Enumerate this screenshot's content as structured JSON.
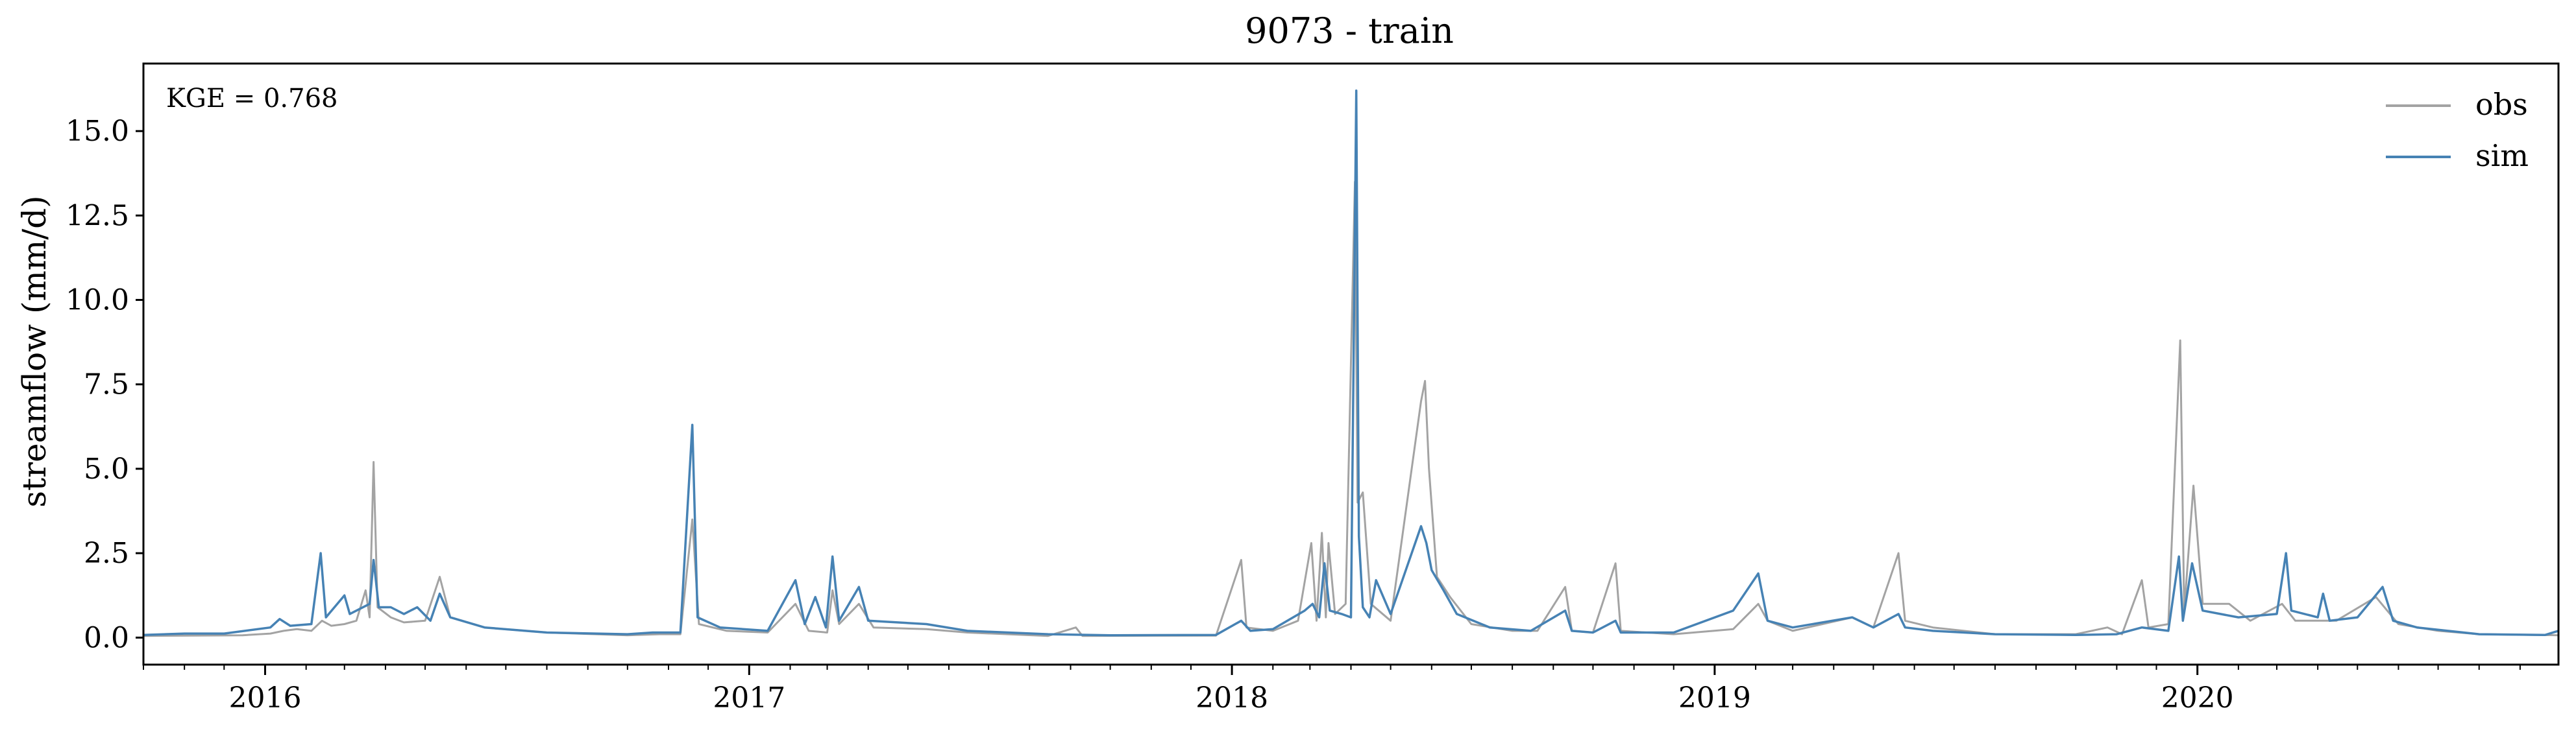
{
  "chart_data": {
    "type": "line",
    "title": "9073 - train",
    "xlabel": "",
    "ylabel": "streamflow (mm/d)",
    "annotation": "KGE = 0.768",
    "legend_position": "top-right",
    "grid": false,
    "xlim": [
      "2015-10-01",
      "2020-09-30"
    ],
    "ylim": [
      -0.8,
      17.0
    ],
    "x_ticks": [
      "2016",
      "2017",
      "2018",
      "2019",
      "2020"
    ],
    "x_tick_dates": [
      "2016-01-01",
      "2017-01-01",
      "2018-01-01",
      "2019-01-01",
      "2020-01-01"
    ],
    "y_ticks": [
      "0.0",
      "2.5",
      "5.0",
      "7.5",
      "10.0",
      "12.5",
      "15.0"
    ],
    "y_tick_values": [
      0,
      2.5,
      5,
      7.5,
      10,
      12.5,
      15
    ],
    "series": [
      {
        "name": "obs",
        "color": "#a3a3a3",
        "points": [
          [
            "2015-10-01",
            0.05
          ],
          [
            "2015-12-15",
            0.07
          ],
          [
            "2016-01-05",
            0.12
          ],
          [
            "2016-01-15",
            0.2
          ],
          [
            "2016-01-25",
            0.25
          ],
          [
            "2016-02-05",
            0.2
          ],
          [
            "2016-02-13",
            0.5
          ],
          [
            "2016-02-20",
            0.35
          ],
          [
            "2016-03-01",
            0.4
          ],
          [
            "2016-03-10",
            0.5
          ],
          [
            "2016-03-17",
            1.4
          ],
          [
            "2016-03-20",
            0.6
          ],
          [
            "2016-03-23",
            5.2
          ],
          [
            "2016-03-26",
            0.9
          ],
          [
            "2016-04-05",
            0.6
          ],
          [
            "2016-04-15",
            0.45
          ],
          [
            "2016-05-01",
            0.5
          ],
          [
            "2016-05-12",
            1.8
          ],
          [
            "2016-05-20",
            0.6
          ],
          [
            "2016-06-15",
            0.3
          ],
          [
            "2016-08-01",
            0.15
          ],
          [
            "2016-10-01",
            0.07
          ],
          [
            "2016-10-25",
            0.1
          ],
          [
            "2016-11-10",
            0.1
          ],
          [
            "2016-11-19",
            3.5
          ],
          [
            "2016-11-24",
            0.4
          ],
          [
            "2016-12-15",
            0.2
          ],
          [
            "2017-01-15",
            0.15
          ],
          [
            "2017-02-05",
            1.0
          ],
          [
            "2017-02-15",
            0.2
          ],
          [
            "2017-03-01",
            0.15
          ],
          [
            "2017-03-05",
            1.4
          ],
          [
            "2017-03-10",
            0.4
          ],
          [
            "2017-03-25",
            1.0
          ],
          [
            "2017-04-05",
            0.3
          ],
          [
            "2017-05-15",
            0.25
          ],
          [
            "2017-06-15",
            0.15
          ],
          [
            "2017-08-15",
            0.05
          ],
          [
            "2017-09-05",
            0.3
          ],
          [
            "2017-09-10",
            0.05
          ],
          [
            "2017-12-20",
            0.06
          ],
          [
            "2018-01-08",
            2.3
          ],
          [
            "2018-01-12",
            0.3
          ],
          [
            "2018-02-01",
            0.2
          ],
          [
            "2018-02-20",
            0.5
          ],
          [
            "2018-03-02",
            2.8
          ],
          [
            "2018-03-06",
            0.5
          ],
          [
            "2018-03-10",
            3.1
          ],
          [
            "2018-03-13",
            0.6
          ],
          [
            "2018-03-15",
            2.8
          ],
          [
            "2018-03-20",
            0.7
          ],
          [
            "2018-03-28",
            1.0
          ],
          [
            "2018-04-04",
            13.5
          ],
          [
            "2018-04-06",
            4.0
          ],
          [
            "2018-04-10",
            4.3
          ],
          [
            "2018-04-16",
            1.0
          ],
          [
            "2018-05-01",
            0.5
          ],
          [
            "2018-05-24",
            7.0
          ],
          [
            "2018-05-27",
            7.6
          ],
          [
            "2018-05-30",
            5.0
          ],
          [
            "2018-06-05",
            1.8
          ],
          [
            "2018-06-15",
            1.2
          ],
          [
            "2018-07-01",
            0.4
          ],
          [
            "2018-08-01",
            0.2
          ],
          [
            "2018-08-20",
            0.2
          ],
          [
            "2018-09-10",
            1.5
          ],
          [
            "2018-09-15",
            0.2
          ],
          [
            "2018-10-01",
            0.15
          ],
          [
            "2018-10-18",
            2.2
          ],
          [
            "2018-10-22",
            0.2
          ],
          [
            "2018-12-01",
            0.1
          ],
          [
            "2019-01-15",
            0.25
          ],
          [
            "2019-02-03",
            1.0
          ],
          [
            "2019-02-10",
            0.5
          ],
          [
            "2019-03-01",
            0.2
          ],
          [
            "2019-04-15",
            0.6
          ],
          [
            "2019-05-01",
            0.3
          ],
          [
            "2019-05-20",
            2.5
          ],
          [
            "2019-05-25",
            0.5
          ],
          [
            "2019-06-15",
            0.3
          ],
          [
            "2019-08-01",
            0.1
          ],
          [
            "2019-10-01",
            0.1
          ],
          [
            "2019-10-25",
            0.3
          ],
          [
            "2019-11-05",
            0.1
          ],
          [
            "2019-11-20",
            1.7
          ],
          [
            "2019-11-25",
            0.3
          ],
          [
            "2019-12-10",
            0.4
          ],
          [
            "2019-12-19",
            8.8
          ],
          [
            "2019-12-22",
            0.8
          ],
          [
            "2019-12-29",
            4.5
          ],
          [
            "2020-01-05",
            1.0
          ],
          [
            "2020-01-25",
            1.0
          ],
          [
            "2020-02-10",
            0.5
          ],
          [
            "2020-03-05",
            1.0
          ],
          [
            "2020-03-15",
            0.5
          ],
          [
            "2020-04-15",
            0.5
          ],
          [
            "2020-05-15",
            1.2
          ],
          [
            "2020-06-01",
            0.4
          ],
          [
            "2020-07-01",
            0.2
          ],
          [
            "2020-08-01",
            0.1
          ],
          [
            "2020-09-30",
            0.07
          ]
        ]
      },
      {
        "name": "sim",
        "color": "#4682b4",
        "points": [
          [
            "2015-10-01",
            0.08
          ],
          [
            "2015-11-01",
            0.12
          ],
          [
            "2015-12-01",
            0.12
          ],
          [
            "2016-01-05",
            0.3
          ],
          [
            "2016-01-12",
            0.55
          ],
          [
            "2016-01-20",
            0.35
          ],
          [
            "2016-02-05",
            0.4
          ],
          [
            "2016-02-12",
            2.5
          ],
          [
            "2016-02-16",
            0.6
          ],
          [
            "2016-03-01",
            1.25
          ],
          [
            "2016-03-05",
            0.7
          ],
          [
            "2016-03-20",
            1.0
          ],
          [
            "2016-03-23",
            2.3
          ],
          [
            "2016-03-27",
            0.9
          ],
          [
            "2016-04-05",
            0.9
          ],
          [
            "2016-04-15",
            0.7
          ],
          [
            "2016-04-25",
            0.9
          ],
          [
            "2016-05-05",
            0.5
          ],
          [
            "2016-05-12",
            1.3
          ],
          [
            "2016-05-20",
            0.6
          ],
          [
            "2016-06-15",
            0.3
          ],
          [
            "2016-08-01",
            0.15
          ],
          [
            "2016-10-01",
            0.1
          ],
          [
            "2016-10-20",
            0.15
          ],
          [
            "2016-11-10",
            0.15
          ],
          [
            "2016-11-19",
            6.3
          ],
          [
            "2016-11-23",
            0.6
          ],
          [
            "2016-12-10",
            0.3
          ],
          [
            "2017-01-15",
            0.2
          ],
          [
            "2017-02-05",
            1.7
          ],
          [
            "2017-02-12",
            0.4
          ],
          [
            "2017-02-20",
            1.2
          ],
          [
            "2017-02-28",
            0.3
          ],
          [
            "2017-03-05",
            2.4
          ],
          [
            "2017-03-10",
            0.5
          ],
          [
            "2017-03-25",
            1.5
          ],
          [
            "2017-04-01",
            0.5
          ],
          [
            "2017-05-15",
            0.4
          ],
          [
            "2017-06-15",
            0.2
          ],
          [
            "2017-08-15",
            0.1
          ],
          [
            "2017-10-01",
            0.07
          ],
          [
            "2017-12-20",
            0.08
          ],
          [
            "2018-01-08",
            0.5
          ],
          [
            "2018-01-15",
            0.2
          ],
          [
            "2018-02-01",
            0.25
          ],
          [
            "2018-02-25",
            0.8
          ],
          [
            "2018-03-03",
            1.0
          ],
          [
            "2018-03-08",
            0.6
          ],
          [
            "2018-03-12",
            2.2
          ],
          [
            "2018-03-16",
            0.8
          ],
          [
            "2018-03-25",
            0.7
          ],
          [
            "2018-04-01",
            0.6
          ],
          [
            "2018-04-03",
            8.3
          ],
          [
            "2018-04-05",
            16.2
          ],
          [
            "2018-04-07",
            3.0
          ],
          [
            "2018-04-10",
            0.9
          ],
          [
            "2018-04-15",
            0.6
          ],
          [
            "2018-04-20",
            1.7
          ],
          [
            "2018-05-01",
            0.7
          ],
          [
            "2018-05-24",
            3.3
          ],
          [
            "2018-05-28",
            2.8
          ],
          [
            "2018-06-01",
            2.0
          ],
          [
            "2018-06-10",
            1.4
          ],
          [
            "2018-06-20",
            0.7
          ],
          [
            "2018-07-15",
            0.3
          ],
          [
            "2018-08-15",
            0.2
          ],
          [
            "2018-09-10",
            0.8
          ],
          [
            "2018-09-15",
            0.2
          ],
          [
            "2018-10-01",
            0.15
          ],
          [
            "2018-10-18",
            0.5
          ],
          [
            "2018-10-22",
            0.15
          ],
          [
            "2018-12-01",
            0.15
          ],
          [
            "2019-01-15",
            0.8
          ],
          [
            "2019-02-03",
            1.9
          ],
          [
            "2019-02-10",
            0.5
          ],
          [
            "2019-03-01",
            0.3
          ],
          [
            "2019-04-15",
            0.6
          ],
          [
            "2019-05-01",
            0.3
          ],
          [
            "2019-05-20",
            0.7
          ],
          [
            "2019-05-25",
            0.3
          ],
          [
            "2019-06-15",
            0.2
          ],
          [
            "2019-08-01",
            0.1
          ],
          [
            "2019-10-01",
            0.08
          ],
          [
            "2019-11-01",
            0.1
          ],
          [
            "2019-11-20",
            0.3
          ],
          [
            "2019-12-10",
            0.2
          ],
          [
            "2019-12-18",
            2.4
          ],
          [
            "2019-12-21",
            0.5
          ],
          [
            "2019-12-28",
            2.2
          ],
          [
            "2020-01-05",
            0.8
          ],
          [
            "2020-02-01",
            0.6
          ],
          [
            "2020-03-01",
            0.7
          ],
          [
            "2020-03-08",
            2.5
          ],
          [
            "2020-03-12",
            0.8
          ],
          [
            "2020-04-01",
            0.6
          ],
          [
            "2020-04-05",
            1.3
          ],
          [
            "2020-04-10",
            0.5
          ],
          [
            "2020-05-01",
            0.6
          ],
          [
            "2020-05-20",
            1.5
          ],
          [
            "2020-05-28",
            0.5
          ],
          [
            "2020-06-15",
            0.3
          ],
          [
            "2020-08-01",
            0.1
          ],
          [
            "2020-09-20",
            0.08
          ],
          [
            "2020-09-30",
            0.2
          ]
        ]
      }
    ]
  }
}
